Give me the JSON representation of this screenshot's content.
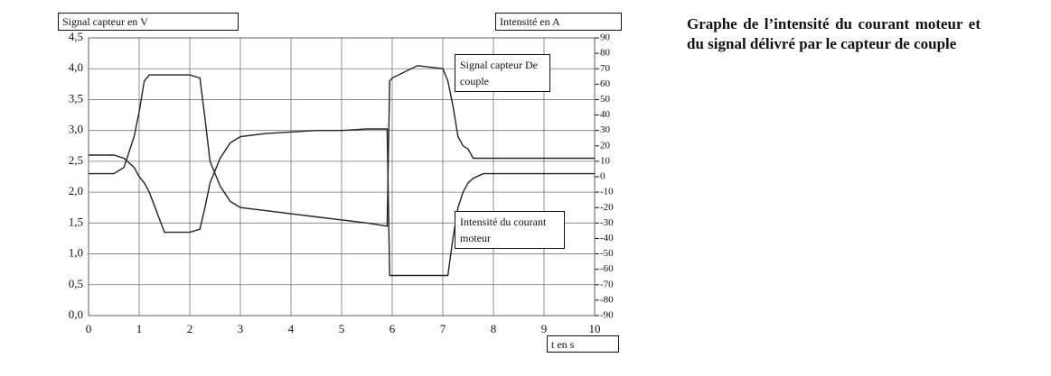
{
  "chart_data": {
    "type": "line",
    "description": "Graphe de l’intensité du courant moteur et du signal délivré par le capteur de couple",
    "xlabel": "t en s",
    "ylabel": "Signal capteur en V",
    "y2label": "Intensité en A",
    "x": [
      0,
      0.5,
      0.7,
      0.9,
      1.0,
      1.1,
      1.2,
      1.5,
      2.0,
      2.2,
      2.3,
      2.4,
      2.5,
      2.6,
      2.8,
      3.0,
      3.5,
      4.0,
      4.5,
      5.0,
      5.5,
      5.9,
      5.95,
      6.0,
      6.5,
      7.0,
      7.1,
      7.2,
      7.3,
      7.4,
      7.5,
      7.6,
      7.8,
      8.0,
      9.0,
      10.0
    ],
    "xlim": [
      0,
      10
    ],
    "xticks": [
      0,
      1,
      2,
      3,
      4,
      5,
      6,
      7,
      8,
      9,
      10
    ],
    "ylim": [
      0,
      4.5
    ],
    "yticks": [
      {
        "value": 0,
        "label": "0,0"
      },
      {
        "value": 0.5,
        "label": "0,5"
      },
      {
        "value": 1,
        "label": "1,0"
      },
      {
        "value": 1.5,
        "label": "1,5"
      },
      {
        "value": 2,
        "label": "2,0"
      },
      {
        "value": 2.5,
        "label": "2,5"
      },
      {
        "value": 3,
        "label": "3,0"
      },
      {
        "value": 3.5,
        "label": "3,5"
      },
      {
        "value": 4,
        "label": "4,0"
      },
      {
        "value": 4.5,
        "label": "4,5"
      }
    ],
    "y2lim": [
      -90,
      90
    ],
    "y2ticks": [
      -90,
      -80,
      -70,
      -60,
      -50,
      -40,
      -30,
      -20,
      -10,
      0,
      10,
      20,
      30,
      40,
      50,
      60,
      70,
      80,
      90
    ],
    "grid": true,
    "series": [
      {
        "name": "Signal capteur De couple",
        "color": "#222222",
        "values": [
          2.3,
          2.3,
          2.4,
          2.9,
          3.3,
          3.8,
          3.9,
          3.9,
          3.9,
          3.85,
          3.2,
          2.5,
          2.3,
          2.1,
          1.85,
          1.75,
          1.7,
          1.65,
          1.6,
          1.55,
          1.5,
          1.45,
          3.8,
          3.85,
          4.05,
          4.0,
          3.8,
          3.4,
          2.9,
          2.75,
          2.7,
          2.55,
          2.55,
          2.55,
          2.55,
          2.55
        ]
      },
      {
        "name": "Intensité du courant moteur",
        "color": "#222222",
        "axis": "y2",
        "values": [
          14,
          14,
          12,
          6,
          0,
          -4,
          -10,
          -36,
          -36,
          -34,
          -20,
          -4,
          4,
          12,
          22,
          26,
          28,
          29,
          30,
          30,
          31,
          31,
          -64,
          -64,
          -64,
          -64,
          -64,
          -40,
          -20,
          -10,
          -4,
          -1,
          2,
          2,
          2,
          2
        ]
      }
    ]
  }
}
